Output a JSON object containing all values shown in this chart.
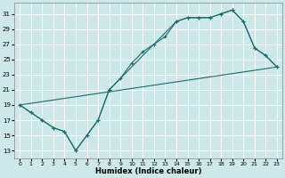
{
  "xlabel": "Humidex (Indice chaleur)",
  "background_color": "#cce8e8",
  "grid_color": "#ffffff",
  "line_color": "#1a6b6b",
  "xlim": [
    -0.5,
    23.5
  ],
  "ylim": [
    12,
    32.5
  ],
  "xticks": [
    0,
    1,
    2,
    3,
    4,
    5,
    6,
    7,
    8,
    9,
    10,
    11,
    12,
    13,
    14,
    15,
    16,
    17,
    18,
    19,
    20,
    21,
    22,
    23
  ],
  "yticks": [
    13,
    15,
    17,
    19,
    21,
    23,
    25,
    27,
    29,
    31
  ],
  "line1_x": [
    0,
    1,
    2,
    3,
    4,
    5,
    6,
    7,
    8,
    9,
    10,
    11,
    12,
    13,
    14,
    15,
    16,
    17,
    18,
    19,
    20,
    21,
    22,
    23
  ],
  "line1_y": [
    19,
    18,
    17,
    16,
    15.5,
    13,
    15,
    17,
    21,
    22.5,
    24.5,
    26,
    27,
    28,
    30,
    30.5,
    30.5,
    30.5,
    31,
    31.5,
    30,
    26.5,
    25.5,
    24
  ],
  "line2_x": [
    0,
    23
  ],
  "line2_y": [
    19,
    24
  ],
  "line3_x": [
    0,
    1,
    2,
    3,
    4,
    5,
    6,
    7,
    8,
    14,
    15,
    16,
    17,
    18,
    19,
    20,
    21,
    22,
    23
  ],
  "line3_y": [
    19,
    18,
    17,
    16,
    15.5,
    13,
    15,
    17,
    21,
    30,
    30.5,
    30.5,
    30.5,
    31,
    31.5,
    30,
    26.5,
    25.5,
    24
  ]
}
